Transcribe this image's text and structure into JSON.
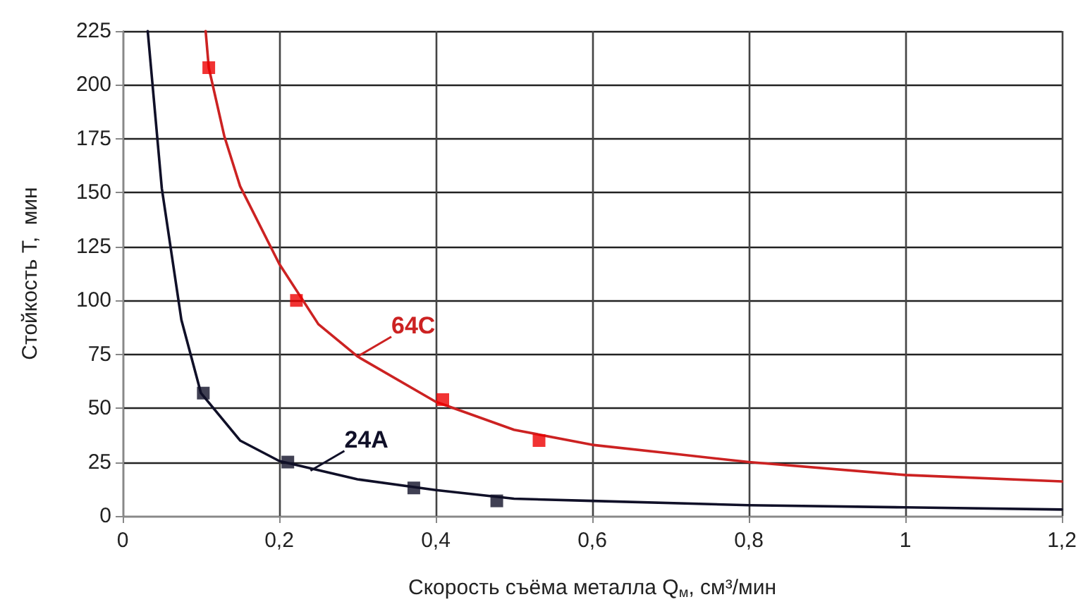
{
  "chart_data": {
    "type": "line",
    "xlabel": "Скорость съёма металла Q$_{м}$, см³/мин",
    "ylabel": "Стойкость Т,  мин",
    "xlim": [
      0,
      1.2
    ],
    "xticks": [
      0,
      {
        "value": 0.2,
        "label": "0,2"
      },
      {
        "value": 0.4,
        "label": "0,4"
      },
      {
        "value": 0.6,
        "label": "0,6"
      },
      {
        "value": 0.8,
        "label": "0,8"
      },
      1,
      {
        "value": 1.2,
        "label": "1,2"
      }
    ],
    "ylim": [
      0,
      225
    ],
    "yticks": [
      0,
      25,
      50,
      75,
      100,
      125,
      150,
      175,
      200,
      225
    ],
    "grid": true,
    "series": [
      {
        "color": "#cc2222",
        "marker": "none",
        "x": [
          0.106,
          0.11,
          0.13,
          0.15,
          0.2,
          0.25,
          0.3,
          0.4,
          0.5,
          0.6,
          0.7,
          0.8,
          1.0,
          1.2
        ],
        "values": [
          225,
          208,
          176,
          153,
          117,
          89,
          74,
          53,
          40,
          33,
          29,
          25,
          19,
          16
        ]
      },
      {
        "color": "#101028",
        "marker": "none",
        "x": [
          0.032,
          0.05,
          0.075,
          0.1,
          0.15,
          0.2,
          0.3,
          0.4,
          0.5,
          0.6,
          0.8,
          1.0,
          1.2
        ],
        "values": [
          225,
          152,
          91,
          57,
          35,
          25.5,
          17,
          12,
          8,
          7,
          5,
          4,
          3
        ]
      },
      {
        "type": "scatter",
        "color": "#ee0000",
        "marker": "square",
        "x": [
          0.11,
          0.222,
          0.409,
          0.532
        ],
        "values": [
          208,
          100,
          54,
          35
        ]
      },
      {
        "type": "scatter",
        "color": "#101028",
        "marker": "square",
        "x": [
          0.103,
          0.211,
          0.372,
          0.478
        ],
        "values": [
          57,
          25,
          13,
          7
        ]
      }
    ],
    "annotations": [
      {
        "text": "64C",
        "x": 0.3,
        "y": 74
      },
      {
        "text": "24A",
        "x": 0.24,
        "y": 21
      }
    ]
  }
}
